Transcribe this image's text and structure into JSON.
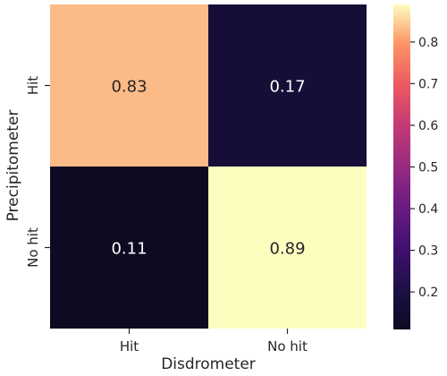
{
  "chart_data": {
    "type": "heatmap",
    "title": "",
    "xlabel": "Disdrometer",
    "ylabel": "Precipitometer",
    "x_categories": [
      "Hit",
      "No hit"
    ],
    "y_categories": [
      "Hit",
      "No hit"
    ],
    "values": [
      [
        0.83,
        0.17
      ],
      [
        0.11,
        0.89
      ]
    ],
    "cell_labels": [
      [
        "0.83",
        "0.17"
      ],
      [
        "0.11",
        "0.89"
      ]
    ],
    "colormap": "magma",
    "colorbar": {
      "min": 0.11,
      "max": 0.89,
      "ticks": [
        0.2,
        0.3,
        0.4,
        0.5,
        0.6,
        0.7,
        0.8
      ],
      "tick_labels": [
        "0.2",
        "0.3",
        "0.4",
        "0.5",
        "0.6",
        "0.7",
        "0.8"
      ]
    }
  }
}
